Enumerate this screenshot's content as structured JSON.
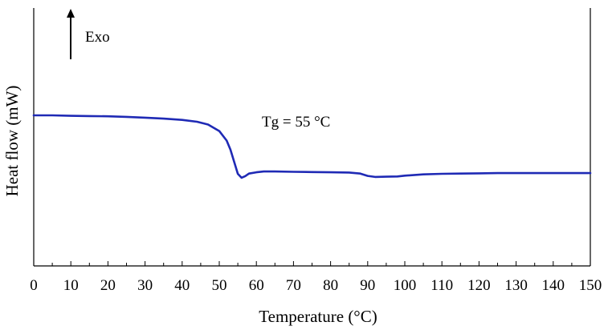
{
  "chart_data": {
    "type": "line",
    "xlabel": "Temperature (°C)",
    "ylabel": "Heat flow (mW)",
    "xlim": [
      0,
      150
    ],
    "ylim": [
      0,
      1
    ],
    "x_ticks": [
      0,
      10,
      20,
      30,
      40,
      50,
      60,
      70,
      80,
      90,
      100,
      110,
      120,
      130,
      140,
      150
    ],
    "x_minor_step": 5,
    "grid": false,
    "legend": "none",
    "line_color": "#1f2ab5",
    "series": [
      {
        "x": [
          0,
          5,
          10,
          15,
          20,
          25,
          30,
          35,
          40,
          44,
          47,
          50,
          52,
          53,
          54,
          55,
          56,
          57,
          58,
          60,
          62,
          65,
          70,
          75,
          80,
          85,
          88,
          90,
          92,
          95,
          98,
          100,
          105,
          110,
          115,
          120,
          125,
          130,
          135,
          140,
          145,
          150
        ],
        "y": [
          0.584,
          0.584,
          0.582,
          0.581,
          0.58,
          0.578,
          0.575,
          0.571,
          0.566,
          0.559,
          0.548,
          0.523,
          0.486,
          0.451,
          0.404,
          0.357,
          0.342,
          0.348,
          0.358,
          0.363,
          0.366,
          0.366,
          0.365,
          0.364,
          0.363,
          0.362,
          0.358,
          0.349,
          0.345,
          0.346,
          0.347,
          0.35,
          0.355,
          0.357,
          0.358,
          0.359,
          0.36,
          0.36,
          0.36,
          0.36,
          0.36,
          0.36
        ]
      }
    ],
    "annotations": {
      "exo": "Exo",
      "tg": "Tg = 55 °C"
    }
  }
}
